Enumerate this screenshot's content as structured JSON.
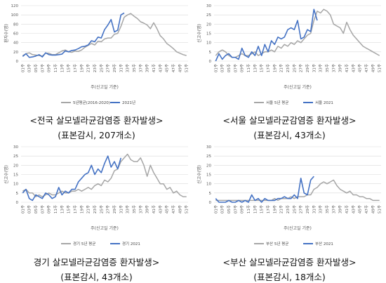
{
  "chart_data": [
    {
      "type": "line",
      "ylabel": "환자수(명)",
      "xlabel": "주(신고일 기준)",
      "ylim": [
        0,
        120
      ],
      "yticks": [
        0,
        20,
        40,
        60,
        80,
        100,
        120
      ],
      "x_ticklabels": [
        "01주",
        "03주",
        "05주",
        "07주",
        "09주",
        "11주",
        "13주",
        "15주",
        "17주",
        "19주",
        "21주",
        "23주",
        "25주",
        "27주",
        "29주",
        "31주",
        "33주",
        "35주",
        "37주",
        "39주",
        "41주",
        "43주",
        "45주",
        "47주",
        "49주",
        "51주"
      ],
      "legend": "bottom",
      "caption_line1": "<전국 살모넬라균감염증 환자발생>",
      "caption_line2": "(표본감시, 207개소)",
      "series": [
        {
          "name": "5년평균(2016-2020)",
          "color": "#a6a6a6",
          "values": [
            12,
            16,
            18,
            14,
            13,
            12,
            11,
            17,
            17,
            14,
            14,
            18,
            22,
            24,
            20,
            19,
            22,
            21,
            24,
            30,
            34,
            38,
            35,
            43,
            42,
            48,
            50,
            50,
            58,
            60,
            75,
            95,
            100,
            103,
            97,
            92,
            85,
            82,
            78,
            70,
            83,
            70,
            55,
            48,
            38,
            33,
            27,
            20,
            17,
            14,
            12
          ]
        },
        {
          "name": "2021년",
          "color": "#4472c4",
          "values": [
            10,
            16,
            8,
            9,
            11,
            14,
            9,
            18,
            14,
            13,
            13,
            14,
            15,
            22,
            20,
            23,
            24,
            27,
            31,
            32,
            35,
            44,
            42,
            52,
            50,
            68,
            78,
            90,
            63,
            67,
            100,
            104
          ]
        }
      ]
    },
    {
      "type": "line",
      "ylabel": "신고수(명)",
      "xlabel": "주(신고일 기준)",
      "ylim": [
        0,
        30
      ],
      "yticks": [
        0,
        5,
        10,
        15,
        20,
        25,
        30
      ],
      "x_ticklabels": [
        "01주",
        "03주",
        "05주",
        "07주",
        "09주",
        "11주",
        "13주",
        "15주",
        "17주",
        "19주",
        "21주",
        "23주",
        "25주",
        "27주",
        "29주",
        "31주",
        "33주",
        "35주",
        "37주",
        "39주",
        "41주",
        "43주",
        "45주",
        "47주",
        "49주",
        "51주"
      ],
      "legend": "bottom",
      "caption_line1": "<서울 살모넬라균감염증 환자발생>",
      "caption_line2": "(표본감시, 43개소)",
      "series": [
        {
          "name": "서울 5년 평균",
          "color": "#a6a6a6",
          "values": [
            3,
            5,
            6,
            5,
            3,
            2,
            2,
            3,
            4,
            3,
            3,
            4,
            5,
            3,
            4,
            5,
            5,
            6,
            5,
            8,
            7,
            9,
            8,
            10,
            9,
            11,
            10,
            12,
            14,
            15,
            22,
            27,
            26,
            28,
            27,
            25,
            20,
            19,
            18,
            15,
            21,
            17,
            14,
            12,
            10,
            8,
            7,
            6,
            5,
            4,
            3
          ]
        },
        {
          "name": "서울 2021",
          "color": "#4472c4",
          "values": [
            0,
            4,
            1,
            3,
            4,
            2,
            2,
            1,
            7,
            3,
            2,
            5,
            3,
            8,
            3,
            9,
            5,
            11,
            9,
            13,
            12,
            13,
            17,
            18,
            17,
            22,
            12,
            13,
            17,
            16,
            28,
            22
          ]
        }
      ]
    },
    {
      "type": "line",
      "ylabel": "신고수(명)",
      "xlabel": "주(신고일 기준)",
      "ylim": [
        0,
        30
      ],
      "yticks": [
        0,
        5,
        10,
        15,
        20,
        25,
        30
      ],
      "x_ticklabels": [
        "01주",
        "03주",
        "05주",
        "07주",
        "09주",
        "11주",
        "13주",
        "15주",
        "17주",
        "19주",
        "21주",
        "23주",
        "25주",
        "27주",
        "29주",
        "31주",
        "33주",
        "35주",
        "37주",
        "39주",
        "41주",
        "43주",
        "45주",
        "47주",
        "49주",
        "51주"
      ],
      "legend": "bottom",
      "caption_line1": "경기 살모넬라균감염증 환자발생>",
      "caption_line2": "(표본감시, 43개소)",
      "series": [
        {
          "name": "경기 5년 평균",
          "color": "#a6a6a6",
          "values": [
            6,
            7,
            5,
            5,
            3,
            4,
            3,
            4,
            5,
            4,
            4,
            5,
            6,
            5,
            5,
            6,
            6,
            7,
            6,
            7,
            8,
            7,
            9,
            10,
            9,
            12,
            11,
            13,
            17,
            18,
            22,
            24,
            26,
            23,
            22,
            22,
            24,
            20,
            14,
            20,
            16,
            13,
            10,
            10,
            7,
            8,
            5,
            6,
            4,
            3,
            3
          ]
        },
        {
          "name": "경기 2021",
          "color": "#4472c4",
          "values": [
            5,
            7,
            2,
            1,
            4,
            3,
            2,
            5,
            4,
            2,
            3,
            8,
            4,
            6,
            5,
            7,
            7,
            11,
            13,
            15,
            16,
            20,
            15,
            18,
            16,
            21,
            25,
            19,
            22,
            18,
            24
          ]
        }
      ]
    },
    {
      "type": "line",
      "ylabel": "신고수(명)",
      "xlabel": "주(신고일 기준)",
      "ylim": [
        0,
        30
      ],
      "yticks": [
        0,
        5,
        10,
        15,
        20,
        25,
        30
      ],
      "x_ticklabels": [
        "01주",
        "03주",
        "05주",
        "07주",
        "09주",
        "11주",
        "13주",
        "15주",
        "17주",
        "19주",
        "21주",
        "23주",
        "25주",
        "27주",
        "29주",
        "31주",
        "33주",
        "35주",
        "37주",
        "39주",
        "41주",
        "43주",
        "45주",
        "47주",
        "49주",
        "51주"
      ],
      "legend": "bottom",
      "caption_line1": "<부산 살모넬라균감염증 환자발생>",
      "caption_line2": "(표본감시, 18개소)",
      "series": [
        {
          "name": "부산 5년 평균",
          "color": "#a6a6a6",
          "values": [
            1,
            1,
            1,
            1,
            1,
            1,
            1,
            1,
            1,
            1,
            1,
            1,
            1,
            1,
            1,
            1,
            1,
            1,
            2,
            1,
            2,
            2,
            2,
            3,
            2,
            3,
            3,
            3,
            4,
            4,
            7,
            8,
            10,
            11,
            10,
            11,
            12,
            9,
            7,
            6,
            5,
            6,
            4,
            4,
            3,
            3,
            2,
            2,
            1,
            1,
            1
          ]
        },
        {
          "name": "부산 2021",
          "color": "#4472c4",
          "values": [
            2,
            0,
            0,
            0,
            1,
            0,
            0,
            1,
            0,
            1,
            0,
            4,
            1,
            2,
            0,
            2,
            1,
            1,
            1,
            2,
            2,
            3,
            2,
            2,
            4,
            2,
            13,
            5,
            4,
            12,
            14
          ]
        }
      ]
    }
  ]
}
